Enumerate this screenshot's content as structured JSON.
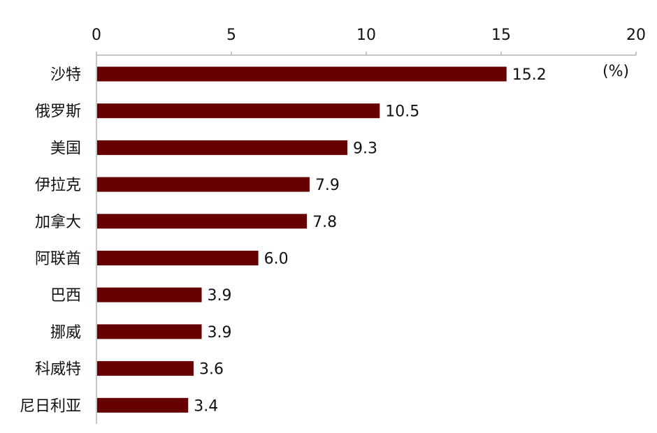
{
  "chart_data": {
    "type": "bar",
    "orientation": "horizontal",
    "categories": [
      "沙特",
      "俄罗斯",
      "美国",
      "伊拉克",
      "加拿大",
      "阿联酋",
      "巴西",
      "挪威",
      "科威特",
      "尼日利亚"
    ],
    "values": [
      15.2,
      10.5,
      9.3,
      7.9,
      7.8,
      6.0,
      3.9,
      3.9,
      3.6,
      3.4
    ],
    "value_labels": [
      "15.2",
      "10.5",
      "9.3",
      "7.9",
      "7.8",
      "6.0",
      "3.9",
      "3.9",
      "3.6",
      "3.4"
    ],
    "xlim": [
      0,
      20
    ],
    "x_ticks": [
      "0",
      "5",
      "10",
      "15",
      "20"
    ],
    "x_tick_values": [
      0,
      5,
      10,
      15,
      20
    ],
    "x_axis_position": "top",
    "unit_label": "(%)",
    "bar_color": "#660000",
    "axis_color": "#b3b3b3",
    "grid": false,
    "legend": "none"
  }
}
